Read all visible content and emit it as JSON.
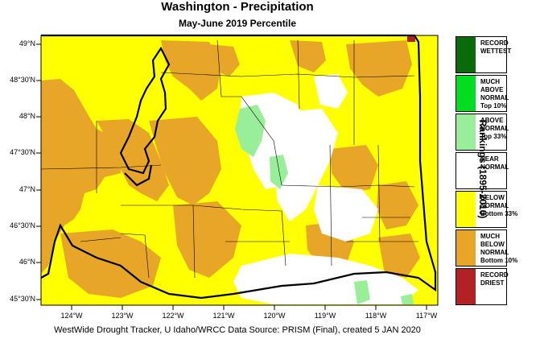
{
  "title": "Washington - Precipitation",
  "subtitle": "May-June 2019 Percentile",
  "credit": "WestWide Drought Tracker, U Idaho/WRCC Data Source: PRISM (Final), created  5 JAN 2020",
  "legend_title": "Rankings (1895-2010)",
  "latitude_labels": [
    "49°N",
    "48°30'N",
    "48°N",
    "47°30'N",
    "47°N",
    "46°30'N",
    "46°N",
    "45°30'N"
  ],
  "longitude_labels": [
    "124°W",
    "123°W",
    "122°W",
    "121°W",
    "120°W",
    "119°W",
    "118°W",
    "117°W"
  ],
  "legend": [
    {
      "label": "RECORD\nWETTEST",
      "color": "#0a6b0a"
    },
    {
      "label": "MUCH\nABOVE\nNORMAL\nTop 10%",
      "color": "#00dd22"
    },
    {
      "label": "ABOVE\nNORMAL\nTop 33%",
      "color": "#99ee99"
    },
    {
      "label": "NEAR\nNORMAL",
      "color": "#ffffff"
    },
    {
      "label": "BELOW\nNORMAL\nBottom 33%",
      "color": "#ffff00"
    },
    {
      "label": "MUCH\nBELOW\nNORMAL\nBottom 10%",
      "color": "#e8a628"
    },
    {
      "label": "RECORD\nDRIEST",
      "color": "#b22222"
    }
  ],
  "colors": {
    "yellow": "#ffff00",
    "orange": "#e8a628",
    "green": "#99ee99",
    "white": "#ffffff",
    "record_dry": "#b22222",
    "border": "#000000"
  }
}
